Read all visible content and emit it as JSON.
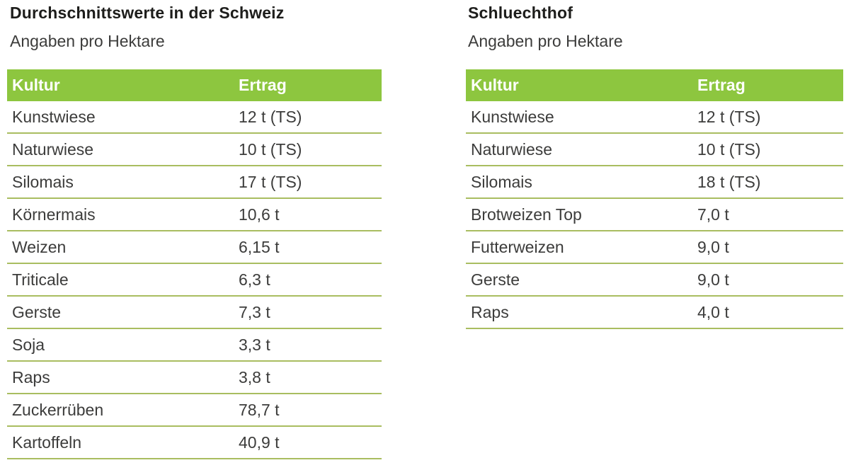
{
  "colors": {
    "header_green": "#8dc63f",
    "row_separator_green": "#a9bd60",
    "header_text": "#ffffff",
    "title_text": "#1d1d1b",
    "body_text": "#3c3c3b",
    "background": "#ffffff"
  },
  "chart_data": [
    {
      "type": "table",
      "title": "Durchschnittswerte in der Schweiz",
      "subtitle": "Angaben pro Hektare",
      "columns": [
        "Kultur",
        "Ertrag"
      ],
      "rows": [
        [
          "Kunstwiese",
          "12 t (TS)"
        ],
        [
          "Naturwiese",
          "10 t (TS)"
        ],
        [
          "Silomais",
          "17 t (TS)"
        ],
        [
          "Körnermais",
          "10,6 t"
        ],
        [
          "Weizen",
          "6,15 t"
        ],
        [
          "Triticale",
          "6,3 t"
        ],
        [
          "Gerste",
          "7,3 t"
        ],
        [
          "Soja",
          "3,3 t"
        ],
        [
          "Raps",
          "3,8 t"
        ],
        [
          "Zuckerrüben",
          "78,7 t"
        ],
        [
          "Kartoffeln",
          "40,9 t"
        ]
      ]
    },
    {
      "type": "table",
      "title": "Schluechthof",
      "subtitle": "Angaben pro Hektare",
      "columns": [
        "Kultur",
        "Ertrag"
      ],
      "rows": [
        [
          "Kunstwiese",
          "12 t (TS)"
        ],
        [
          "Naturwiese",
          "10 t (TS)"
        ],
        [
          "Silomais",
          "18 t (TS)"
        ],
        [
          "Brotweizen Top",
          "7,0 t"
        ],
        [
          "Futterweizen",
          "9,0 t"
        ],
        [
          "Gerste",
          "9,0 t"
        ],
        [
          "Raps",
          "4,0 t"
        ]
      ]
    }
  ]
}
